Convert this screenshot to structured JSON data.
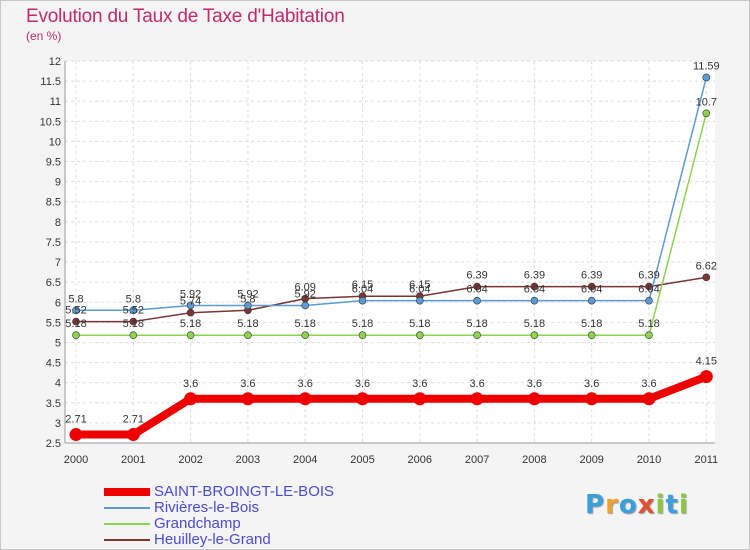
{
  "header": {
    "title": "Evolution du Taux de Taxe d'Habitation",
    "subtitle": "(en %)"
  },
  "chart_data": {
    "type": "line",
    "title": "Evolution du Taux de Taxe d'Habitation",
    "ylabel": "(en %)",
    "xlabel": "",
    "x": [
      "2000",
      "2001",
      "2002",
      "2003",
      "2004",
      "2005",
      "2006",
      "2007",
      "2008",
      "2009",
      "2010",
      "2011"
    ],
    "ylim": [
      2.5,
      12
    ],
    "yticks": [
      "2.5",
      "3",
      "3.5",
      "4",
      "4.5",
      "5",
      "5.5",
      "6",
      "6.5",
      "7",
      "7.5",
      "8",
      "8.5",
      "9",
      "9.5",
      "10",
      "10.5",
      "11",
      "11.5",
      "12"
    ],
    "grid": true,
    "series": [
      {
        "name": "SAINT-BROINGT-LE-BOIS",
        "color": "#ee0000",
        "values": [
          2.71,
          2.71,
          3.6,
          3.6,
          3.6,
          3.6,
          3.6,
          3.6,
          3.6,
          3.6,
          3.6,
          4.15
        ],
        "labels": [
          "2.71",
          "2.71",
          "3.6",
          "3.6",
          "3.6",
          "3.6",
          "3.6",
          "3.6",
          "3.6",
          "3.6",
          "3.6",
          "4.15"
        ]
      },
      {
        "name": "Rivières-le-Bois",
        "color": "#5b9bd5",
        "values": [
          5.8,
          5.8,
          5.92,
          5.92,
          5.92,
          6.04,
          6.04,
          6.04,
          6.04,
          6.04,
          6.04,
          11.59
        ],
        "labels": [
          "5.8",
          "5.8",
          "5.92",
          "5.92",
          "5.92",
          "6.04",
          "6.04",
          "6.04",
          "6.04",
          "6.04",
          "6.04",
          "11.59"
        ]
      },
      {
        "name": "Grandchamp",
        "color": "#8ed34f",
        "values": [
          5.18,
          5.18,
          5.18,
          5.18,
          5.18,
          5.18,
          5.18,
          5.18,
          5.18,
          5.18,
          5.18,
          10.7
        ],
        "labels": [
          "5.18",
          "5.18",
          "5.18",
          "5.18",
          "5.18",
          "5.18",
          "5.18",
          "5.18",
          "5.18",
          "5.18",
          "5.18",
          "10.7"
        ]
      },
      {
        "name": "Heuilley-le-Grand",
        "color": "#7b3535",
        "values": [
          5.52,
          5.52,
          5.74,
          5.8,
          6.09,
          6.15,
          6.15,
          6.39,
          6.39,
          6.39,
          6.39,
          6.62
        ],
        "labels": [
          "5.52",
          "5.52",
          "5.74",
          "5.8",
          "6.09",
          "6.15",
          "6.15",
          "6.39",
          "6.39",
          "6.39",
          "6.39",
          "6.62"
        ]
      }
    ],
    "legend": "bottom-left"
  },
  "legend": {
    "items": [
      {
        "label": "SAINT-BROINGT-LE-BOIS",
        "color": "#ee0000"
      },
      {
        "label": "Rivières-le-Bois",
        "color": "#5b9bd5"
      },
      {
        "label": "Grandchamp",
        "color": "#8ed34f"
      },
      {
        "label": "Heuilley-le-Grand",
        "color": "#7b3535"
      }
    ]
  },
  "logo": {
    "text": "Proxiti",
    "letters": [
      "P",
      "r",
      "o",
      "x",
      "i",
      "t",
      "i"
    ],
    "colors": [
      "#3aa0dc",
      "#f0a030",
      "#3aa0dc",
      "#e05030",
      "#8ec63f",
      "#3aa0dc",
      "#8ec63f"
    ]
  }
}
